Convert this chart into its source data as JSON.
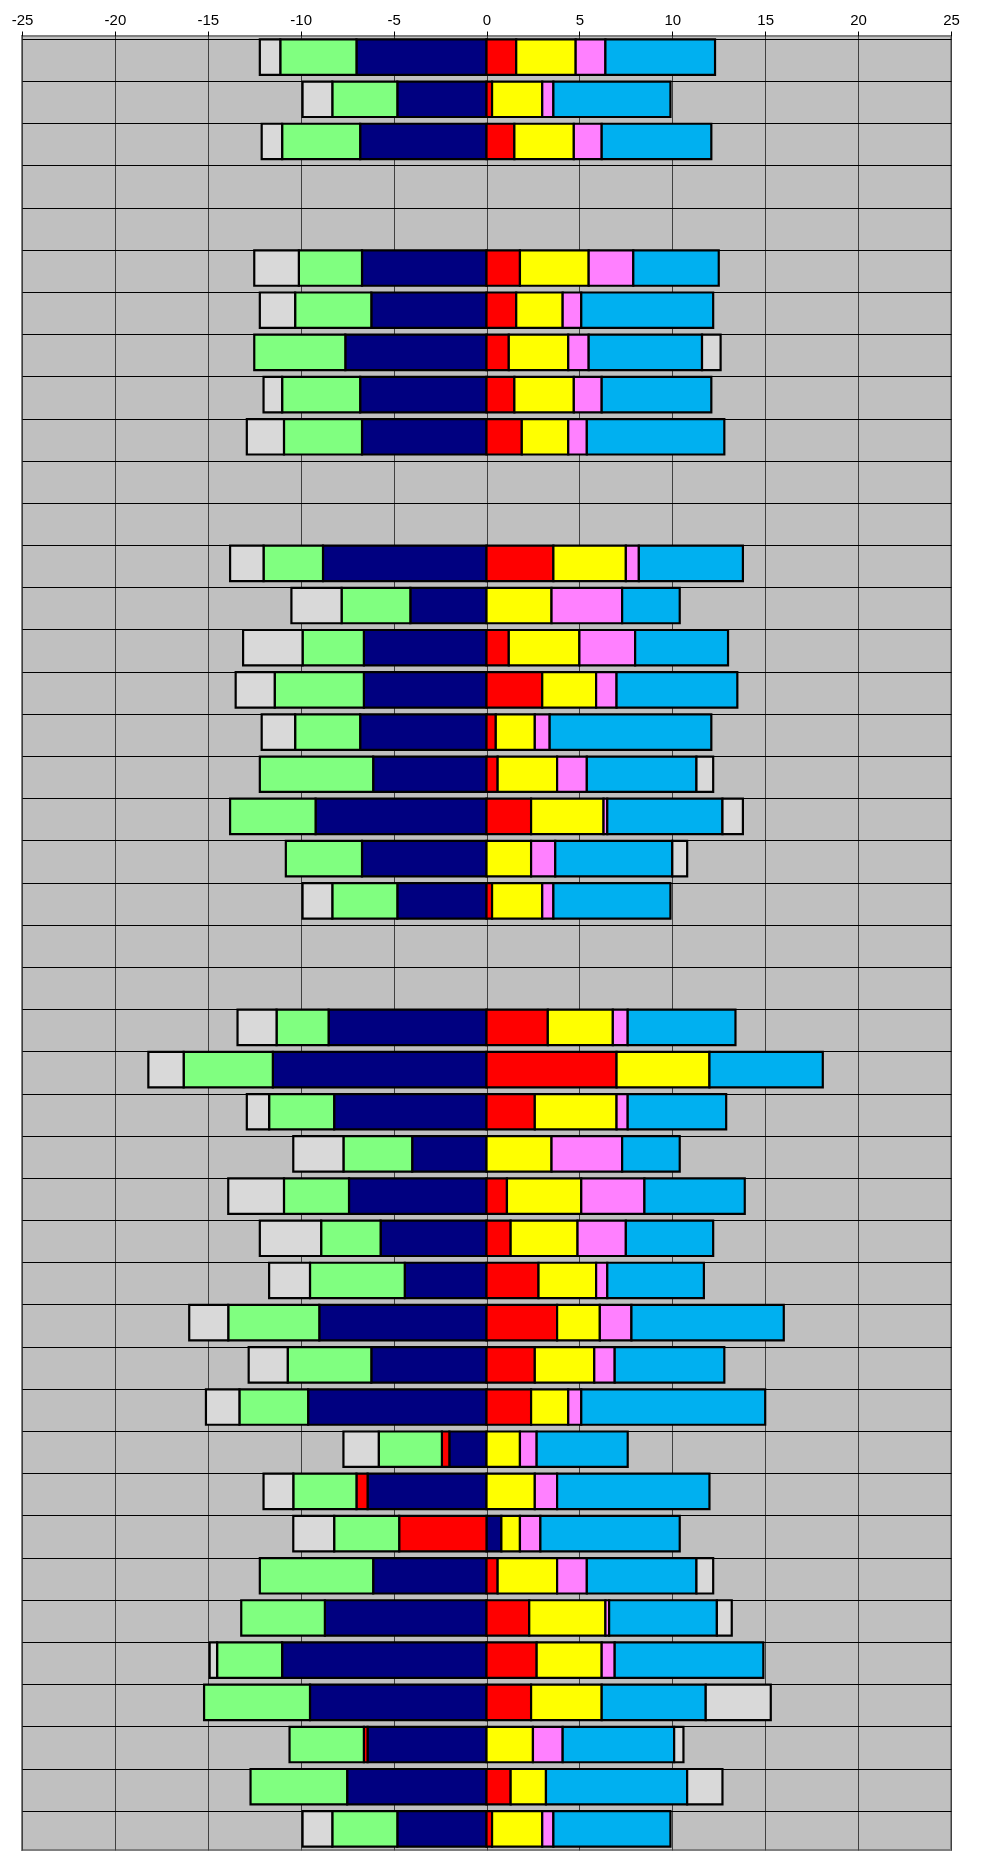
{
  "chart_data": {
    "type": "bar",
    "orientation": "horizontal",
    "stacked": true,
    "grid": true,
    "tick_labels": "x",
    "categories": [
      null,
      null,
      null,
      null,
      null,
      null,
      null,
      null,
      null,
      null,
      null,
      null,
      null,
      null,
      null,
      null,
      null,
      null,
      null,
      null,
      null,
      null,
      null,
      null,
      null,
      null,
      null,
      null,
      null,
      null,
      null,
      null,
      null,
      null,
      null,
      null,
      null,
      null,
      null,
      null,
      null,
      null,
      null
    ],
    "xlim": [
      -25,
      25
    ],
    "xticks": [
      -25,
      -20,
      -15,
      -10,
      -5,
      0,
      5,
      10,
      15,
      20,
      25
    ],
    "series": [
      {
        "color": "#000080",
        "values": [
          -7.0,
          -4.8,
          -6.8,
          null,
          null,
          -6.7,
          -6.2,
          -7.6,
          -6.8,
          -6.7,
          null,
          null,
          -8.8,
          -4.1,
          -6.6,
          -6.6,
          -6.8,
          -6.1,
          -9.2,
          -6.7,
          -4.8,
          null,
          null,
          -8.5,
          -11.5,
          -8.2,
          -4.0,
          -7.4,
          -5.7,
          -4.4,
          -9.0,
          -6.2,
          -9.6,
          -2.0,
          -6.4,
          0.8,
          -6.1,
          -8.7,
          -11.0,
          -9.5,
          -6.4,
          -7.5,
          -4.8
        ]
      },
      {
        "color": "#ff0000",
        "values": [
          1.6,
          0.3,
          1.5,
          null,
          null,
          1.8,
          1.6,
          1.2,
          1.5,
          1.9,
          null,
          null,
          3.6,
          null,
          1.2,
          3.0,
          0.5,
          0.6,
          2.4,
          null,
          0.3,
          null,
          null,
          3.3,
          7.0,
          2.6,
          null,
          1.1,
          1.3,
          2.8,
          3.8,
          2.6,
          2.4,
          -0.4,
          -0.6,
          -4.7,
          0.6,
          2.3,
          2.7,
          2.4,
          -0.2,
          1.3,
          0.3
        ]
      },
      {
        "color": "#ffff00",
        "values": [
          3.2,
          2.7,
          3.2,
          null,
          null,
          3.7,
          2.5,
          3.2,
          3.2,
          2.5,
          null,
          null,
          3.9,
          3.5,
          3.8,
          2.9,
          2.1,
          3.2,
          3.9,
          2.4,
          2.7,
          null,
          null,
          3.5,
          5.0,
          4.4,
          3.5,
          4.0,
          3.6,
          3.1,
          2.3,
          3.2,
          2.0,
          1.8,
          2.6,
          1.0,
          3.2,
          4.1,
          3.5,
          3.8,
          2.5,
          1.9,
          2.7
        ]
      },
      {
        "color": "#ff80ff",
        "values": [
          1.6,
          0.6,
          1.5,
          null,
          null,
          2.4,
          1.0,
          1.1,
          1.5,
          1.0,
          null,
          null,
          0.7,
          3.8,
          3.0,
          1.1,
          0.8,
          1.6,
          0.2,
          1.3,
          0.6,
          null,
          null,
          0.8,
          null,
          0.6,
          3.8,
          3.4,
          2.6,
          0.6,
          1.7,
          1.1,
          0.7,
          0.9,
          1.2,
          1.1,
          1.6,
          0.2,
          0.7,
          null,
          1.6,
          null,
          0.6
        ]
      },
      {
        "color": "#80ff80",
        "values": [
          -4.1,
          -3.5,
          -4.2,
          null,
          null,
          -3.4,
          -4.1,
          -4.9,
          -4.2,
          -4.2,
          null,
          null,
          -3.2,
          -3.7,
          -3.3,
          -4.8,
          -3.5,
          -6.1,
          -4.6,
          -4.1,
          -3.5,
          null,
          null,
          -2.8,
          -4.8,
          -3.5,
          -3.7,
          -3.5,
          -3.2,
          -5.1,
          -4.9,
          -4.5,
          -3.7,
          -3.4,
          -3.4,
          -3.5,
          -6.1,
          -4.5,
          -3.5,
          -5.7,
          -4.0,
          -5.2,
          -3.5
        ]
      },
      {
        "color": "#00b0f0",
        "values": [
          5.9,
          6.3,
          5.9,
          null,
          null,
          4.6,
          7.1,
          6.1,
          5.9,
          7.4,
          null,
          null,
          5.6,
          3.1,
          5.0,
          6.5,
          8.7,
          5.9,
          6.2,
          6.3,
          6.3,
          null,
          null,
          5.8,
          6.1,
          5.3,
          3.1,
          5.4,
          4.7,
          5.2,
          8.2,
          5.9,
          9.9,
          4.9,
          8.2,
          7.5,
          5.9,
          5.8,
          8.0,
          5.6,
          6.0,
          7.6,
          6.3
        ]
      },
      {
        "color": "#d9d9d9",
        "values": [
          -1.1,
          -1.6,
          -1.1,
          null,
          null,
          -2.4,
          -1.9,
          1.0,
          -1.0,
          -2.0,
          null,
          null,
          -1.8,
          -2.7,
          -3.2,
          -2.1,
          -1.8,
          0.9,
          1.1,
          0.8,
          -1.6,
          null,
          null,
          -2.1,
          -1.9,
          -1.2,
          -2.7,
          -3.0,
          -3.3,
          -2.2,
          -2.1,
          -2.1,
          -1.8,
          -1.9,
          -1.6,
          -2.2,
          0.9,
          0.8,
          -0.4,
          3.5,
          0.5,
          1.9,
          -1.6
        ]
      }
    ]
  }
}
